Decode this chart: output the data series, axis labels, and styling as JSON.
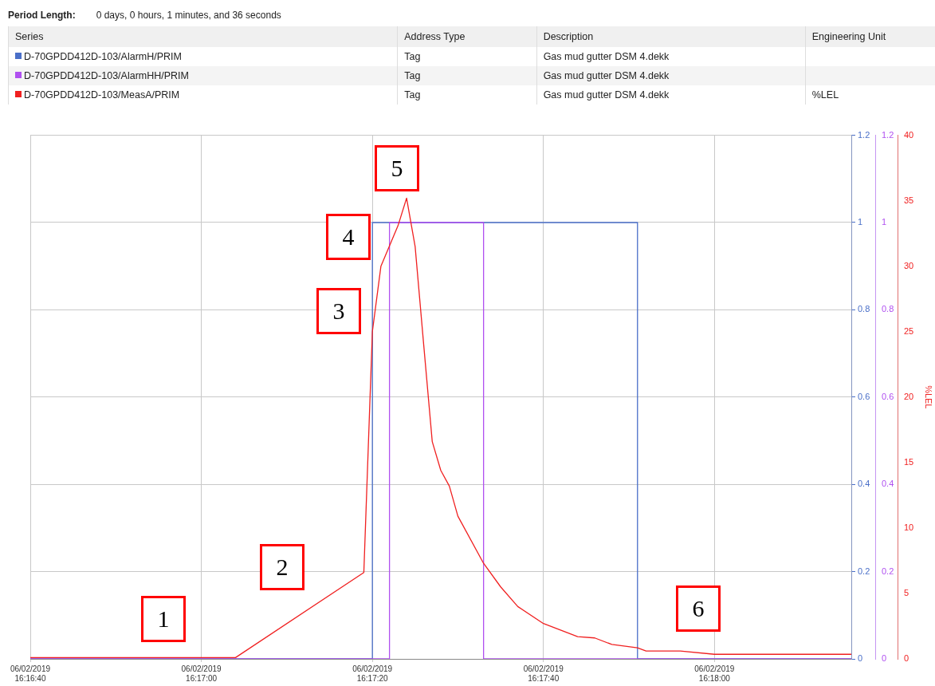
{
  "chart_data": {
    "type": "line",
    "legend": "top",
    "legend_title": "Series",
    "grid": true,
    "marker": "none",
    "line_style": "solid",
    "xlim": [
      "2019-06-02T16:16:40",
      "2019-06-02T16:18:16"
    ],
    "xticks": [
      {
        "value": "2019-06-02T16:16:40",
        "label": "06/02/2019\n16:16:40"
      },
      {
        "value": "2019-06-02T16:17:00",
        "label": "06/02/2019\n16:17:00"
      },
      {
        "value": "2019-06-02T16:17:20",
        "label": "06/02/2019\n16:17:20"
      },
      {
        "value": "2019-06-02T16:17:40",
        "label": "06/02/2019\n16:17:40"
      },
      {
        "value": "2019-06-02T16:18:00",
        "label": "06/02/2019\n16:18:00"
      }
    ],
    "ylim": [
      0,
      1.2
    ],
    "yticks": [
      0,
      0.2,
      0.4,
      0.6,
      0.8,
      1,
      1.2
    ],
    "y2lim": [
      0,
      1.2
    ],
    "y2ticks": [
      0,
      0.2,
      0.4,
      0.6,
      0.8,
      1,
      1.2
    ],
    "y3lim": [
      0,
      40
    ],
    "y3ticks": [
      0,
      5,
      10,
      15,
      20,
      25,
      30,
      35,
      40
    ],
    "y3label": "%LEL",
    "series": [
      {
        "name": "D-70GPDD412D-103/AlarmH/PRIM",
        "color": "#4a6fc8",
        "axis": "y",
        "x": [
          "2019-06-02T16:16:40",
          "2019-06-02T16:17:20",
          "2019-06-02T16:17:20",
          "2019-06-02T16:17:51",
          "2019-06-02T16:17:51",
          "2019-06-02T16:18:16"
        ],
        "values": [
          0,
          0,
          1,
          1,
          0,
          0
        ]
      },
      {
        "name": "D-70GPDD412D-103/AlarmHH/PRIM",
        "color": "#b050f0",
        "axis": "y2",
        "x": [
          "2019-06-02T16:16:40",
          "2019-06-02T16:17:22",
          "2019-06-02T16:17:22",
          "2019-06-02T16:17:33",
          "2019-06-02T16:17:33",
          "2019-06-02T16:18:16"
        ],
        "values": [
          0,
          0,
          1,
          1,
          0,
          0
        ]
      },
      {
        "name": "D-70GPDD412D-103/MeasA/PRIM",
        "color": "#f02020",
        "axis": "y3",
        "x": [
          "2019-06-02T16:16:40",
          "2019-06-02T16:17:04",
          "2019-06-02T16:17:19",
          "2019-06-02T16:17:20",
          "2019-06-02T16:17:21",
          "2019-06-02T16:17:23",
          "2019-06-02T16:17:24",
          "2019-06-02T16:17:25",
          "2019-06-02T16:17:26",
          "2019-06-02T16:17:27",
          "2019-06-02T16:17:28",
          "2019-06-02T16:17:29",
          "2019-06-02T16:17:30",
          "2019-06-02T16:17:33",
          "2019-06-02T16:17:35",
          "2019-06-02T16:17:37",
          "2019-06-02T16:17:40",
          "2019-06-02T16:17:44",
          "2019-06-02T16:17:46",
          "2019-06-02T16:17:48",
          "2019-06-02T16:17:51",
          "2019-06-02T16:17:52",
          "2019-06-02T16:17:56",
          "2019-06-02T16:18:00",
          "2019-06-02T16:18:16"
        ],
        "values": [
          0.1,
          0.1,
          6.6,
          25,
          30,
          33.1,
          35.2,
          31.5,
          24,
          16.6,
          14.4,
          13.2,
          10.9,
          7.3,
          5.5,
          4,
          2.7,
          1.7,
          1.6,
          1.1,
          0.85,
          0.6,
          0.6,
          0.35,
          0.35
        ]
      }
    ],
    "annotations": [
      "Period Length:",
      "0 days, 0 hours, 1 minutes, and 36 seconds",
      "Address Type",
      "Description",
      "Engineering Unit",
      "Tag",
      "Gas mud gutter DSM 4.dekk",
      "Tag",
      "Gas mud gutter DSM 4.dekk",
      "Tag",
      "Gas mud gutter DSM 4.dekk",
      "%LEL",
      "1",
      "2",
      "3",
      "4",
      "5",
      "6"
    ]
  }
}
